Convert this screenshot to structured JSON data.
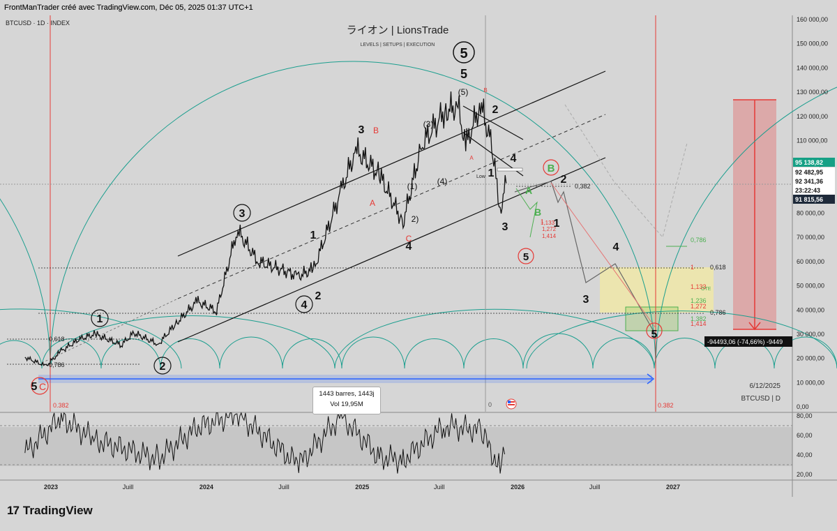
{
  "header": {
    "credit": "FrontManTrader créé avec TradingView.com, Déc 05, 2025 01:37 UTC+1",
    "symbol_line": "BTCUSD · 1D · INDEX",
    "watermark_title": "ライオン | LionsTrade",
    "watermark_sub": "LEVELS  |  SETUPS  |  EXECUTION",
    "bottom_date": "6/12/2025",
    "bottom_symbol": "BTCUSD  |  D"
  },
  "price_axis": {
    "labels": [
      "160 000,00",
      "150 000,00",
      "140 000,00",
      "130 000,00",
      "120 000,00",
      "110 000,00",
      "100 000,00",
      "90 000,00",
      "80 000,00",
      "70 000,00",
      "60 000,00",
      "50 000,00",
      "40 000,00",
      "30 000,00",
      "20 000,00",
      "10 000,00",
      "0,00"
    ],
    "badges": [
      {
        "text": "95 138,82",
        "color": "#16a085",
        "text_color": "#ffffff"
      },
      {
        "text": "92 482,95",
        "color": "#ffffff",
        "text_color": "#111111"
      },
      {
        "text": "92 341,36",
        "color": "#ffffff",
        "text_color": "#111111"
      },
      {
        "text": "23:22:43",
        "color": "#ffffff",
        "text_color": "#111111"
      },
      {
        "text": "91 815,56",
        "color": "#1e2a3a",
        "text_color": "#ffffff"
      }
    ]
  },
  "rsi_axis": {
    "labels": [
      "80,00",
      "60,00",
      "40,00",
      "20,00"
    ]
  },
  "time_axis": {
    "labels": [
      "2023",
      "Juill",
      "2024",
      "Juill",
      "2025",
      "Juill",
      "2026",
      "Juill",
      "2027"
    ]
  },
  "measure": {
    "bars_line": "1443 barres, 1443j",
    "vol_line": "Vol 19,95M",
    "drop_label": "-94493,06 (-74,66%) -9449"
  },
  "fib_labels": {
    "left_0618": "0,618",
    "left_0786": "0,786",
    "left_0382": "0.382",
    "right_0382": "0.382",
    "mid_0382": "0,382",
    "r_1": "1",
    "r_0618": "0,618",
    "r_0786": "0,786",
    "g_0786": "0,786",
    "g_1133": "1,133",
    "g_1236": "1,236",
    "g_1272": "1,272",
    "g_1382": "1,382",
    "g_1414": "1,414",
    "small_0": "0",
    "ote": "OTE",
    "low": "Low"
  },
  "wave_labels": {
    "w5_circ_top": "5",
    "w5_top": "5",
    "w5_paren": "(5)",
    "w3_paren": "(3)",
    "w4_paren": "(4)",
    "w1_paren": "(1)",
    "w2_paren": "2)",
    "w3": "3",
    "wB": "B",
    "wA": "A",
    "wC": "C",
    "w4": "4",
    "w3_circ": "3",
    "w1": "1",
    "w4_circ": "4",
    "w2": "2",
    "w1_circ": "1",
    "w2_circ": "2",
    "w5C": "5",
    "wC2": "C",
    "top_2": "2",
    "top_4": "4",
    "top_1": "1",
    "top_3": "3",
    "top_B": "B",
    "top_a": "A",
    "green_A": "A",
    "green_B": "B",
    "red5": "5",
    "proj_B": "B",
    "proj_2": "2",
    "proj_1": "1",
    "proj_3": "3",
    "proj_4": "4",
    "proj_5": "5",
    "ret_1": "1",
    "ret_1133": "1,133",
    "ret_1272": "1,272",
    "ret_1414": "1,414"
  },
  "colors": {
    "arc": "#1a9e8e",
    "red_line": "#e53935",
    "blue": "#2962ff",
    "candle": "#111111",
    "zone_red": "#e57373",
    "zone_yellow": "#f3e9a2",
    "zone_green": "#9ccc65"
  },
  "chart_data": {
    "type": "line",
    "title": "",
    "ylim": [
      0,
      160000
    ],
    "price_path": {
      "x": [
        "2022-11-01",
        "2022-12-20",
        "2023-01-25",
        "2023-03-10",
        "2023-04-15",
        "2023-06-15",
        "2023-07-15",
        "2023-09-10",
        "2023-10-20",
        "2023-12-10",
        "2024-01-25",
        "2024-03-13",
        "2024-05-01",
        "2024-08-05",
        "2024-09-10",
        "2024-11-12",
        "2024-12-17",
        "2025-02-10",
        "2025-04-07",
        "2025-05-20",
        "2025-07-14",
        "2025-08-14",
        "2025-09-01",
        "2025-10-06",
        "2025-11-01",
        "2025-11-21",
        "2025-12-05"
      ],
      "y": [
        20500,
        16800,
        23000,
        28000,
        30000,
        25500,
        30500,
        25800,
        34000,
        43500,
        39500,
        73000,
        60000,
        54000,
        57000,
        89000,
        106000,
        96000,
        76000,
        108000,
        122000,
        124000,
        108000,
        125000,
        108000,
        81000,
        92341
      ]
    },
    "rsi": {
      "ylim": [
        20,
        80
      ],
      "x": [
        "2022-11-01",
        "2023-01-25",
        "2023-04-15",
        "2023-09-10",
        "2023-12-10",
        "2024-03-13",
        "2024-08-05",
        "2024-11-12",
        "2025-02-10",
        "2025-04-07",
        "2025-07-14",
        "2025-10-06",
        "2025-11-21",
        "2025-12-05"
      ],
      "y": [
        42,
        78,
        55,
        36,
        68,
        82,
        30,
        80,
        38,
        35,
        70,
        65,
        25,
        47
      ]
    },
    "levels": [
      {
        "label": "0,618",
        "value": 28500
      },
      {
        "label": "0,382",
        "value": 92000
      },
      {
        "label": "0,618",
        "value": 58000
      },
      {
        "label": "0,786",
        "value": 39000
      },
      {
        "label": "0,786",
        "value": 68000
      }
    ]
  }
}
